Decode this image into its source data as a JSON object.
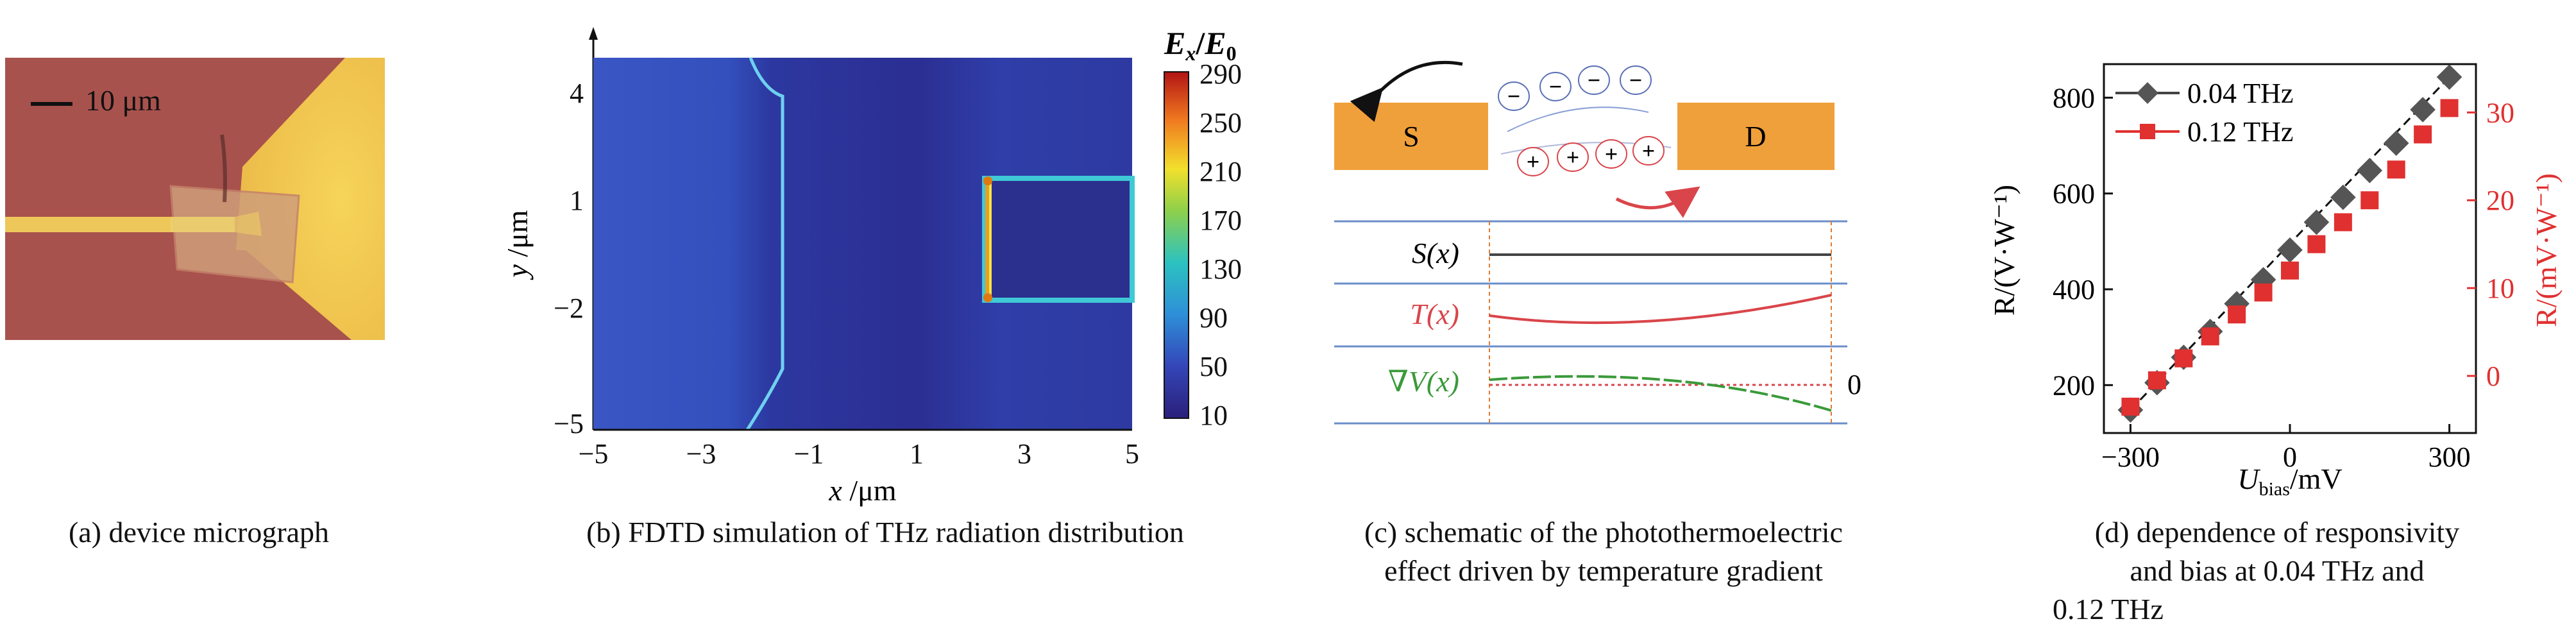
{
  "panel_a": {
    "scale_label": "10 μm",
    "caption": "(a) device micrograph",
    "colors": {
      "substrate": "#a8524d",
      "gold": "#f1c552",
      "channel": "#d8a96b"
    }
  },
  "panel_b": {
    "colorbar_title_main": "E",
    "colorbar_title_sub": "x",
    "colorbar_title_div": "/",
    "colorbar_title_main2": "E",
    "colorbar_title_sub2": "0",
    "colorbar_ticks": [
      "290",
      "250",
      "210",
      "170",
      "130",
      "90",
      "50",
      "10"
    ],
    "x_ticks": [
      "−5",
      "−3",
      "−1",
      "1",
      "3",
      "5"
    ],
    "y_ticks": [
      "4",
      "1",
      "−2",
      "−5"
    ],
    "xlabel_var": "x",
    "xlabel_unit": " /μm",
    "ylabel_var": "y",
    "ylabel_unit": " /μm",
    "caption": "(b) FDTD simulation of THz radiation distribution"
  },
  "panel_c": {
    "source_label": "S",
    "drain_label": "D",
    "minus_sign": "−",
    "plus_sign": "+",
    "row1_label": "S(x)",
    "row2_label": "T(x)",
    "row3_label": "∇V(x)",
    "zero_label": "0",
    "caption_line1": "(c) schematic of the photothermoelectric",
    "caption_line2": "effect driven by temperature gradient",
    "colors": {
      "electrode": "#f0a03a",
      "minus": "#5b6fb5",
      "plus": "#d9454a",
      "t_curve": "#d9454a",
      "v_curve": "#3a9a3a",
      "grid": "#6b8ec9"
    }
  },
  "panel_d": {
    "chart_data": {
      "type": "scatter",
      "x": [
        -300,
        -250,
        -200,
        -150,
        -100,
        -50,
        0,
        50,
        100,
        150,
        200,
        250,
        300
      ],
      "series": [
        {
          "name": "0.04 THz",
          "axis": "left",
          "marker": "diamond",
          "color": "#444444",
          "values": [
            148,
            205,
            258,
            312,
            370,
            420,
            482,
            540,
            592,
            648,
            705,
            775,
            843
          ]
        },
        {
          "name": "0.12 THz",
          "axis": "right",
          "marker": "square",
          "color": "#e03030",
          "values": [
            -3.5,
            -0.5,
            2,
            4.5,
            7,
            9.5,
            12,
            15,
            17.5,
            20,
            23.5,
            27.5,
            30.5
          ]
        }
      ],
      "xlim": [
        -350,
        350
      ],
      "ylim_left": [
        100,
        870
      ],
      "ylim_right": [
        -6.5,
        35.5
      ],
      "x_ticks": [
        "−300",
        "0",
        "300"
      ],
      "x_tick_values": [
        -300,
        0,
        300
      ],
      "y_ticks_left": [
        "200",
        "400",
        "600",
        "800"
      ],
      "y_tick_values_left": [
        200,
        400,
        600,
        800
      ],
      "y_ticks_right": [
        "0",
        "10",
        "20",
        "30"
      ],
      "y_tick_values_right": [
        0,
        10,
        20,
        30
      ],
      "xlabel_main": "U",
      "xlabel_sub": "bias",
      "xlabel_unit": "/mV",
      "ylabel_left": "R/(V·W⁻¹)",
      "ylabel_right": "R/(mV·W⁻¹)",
      "fit_line": "dashed black",
      "legend_position": "top-left"
    },
    "caption_line1": "(d) dependence of responsivity",
    "caption_line2": "and bias at 0.04 THz and",
    "caption_line3": "0.12 THz"
  }
}
